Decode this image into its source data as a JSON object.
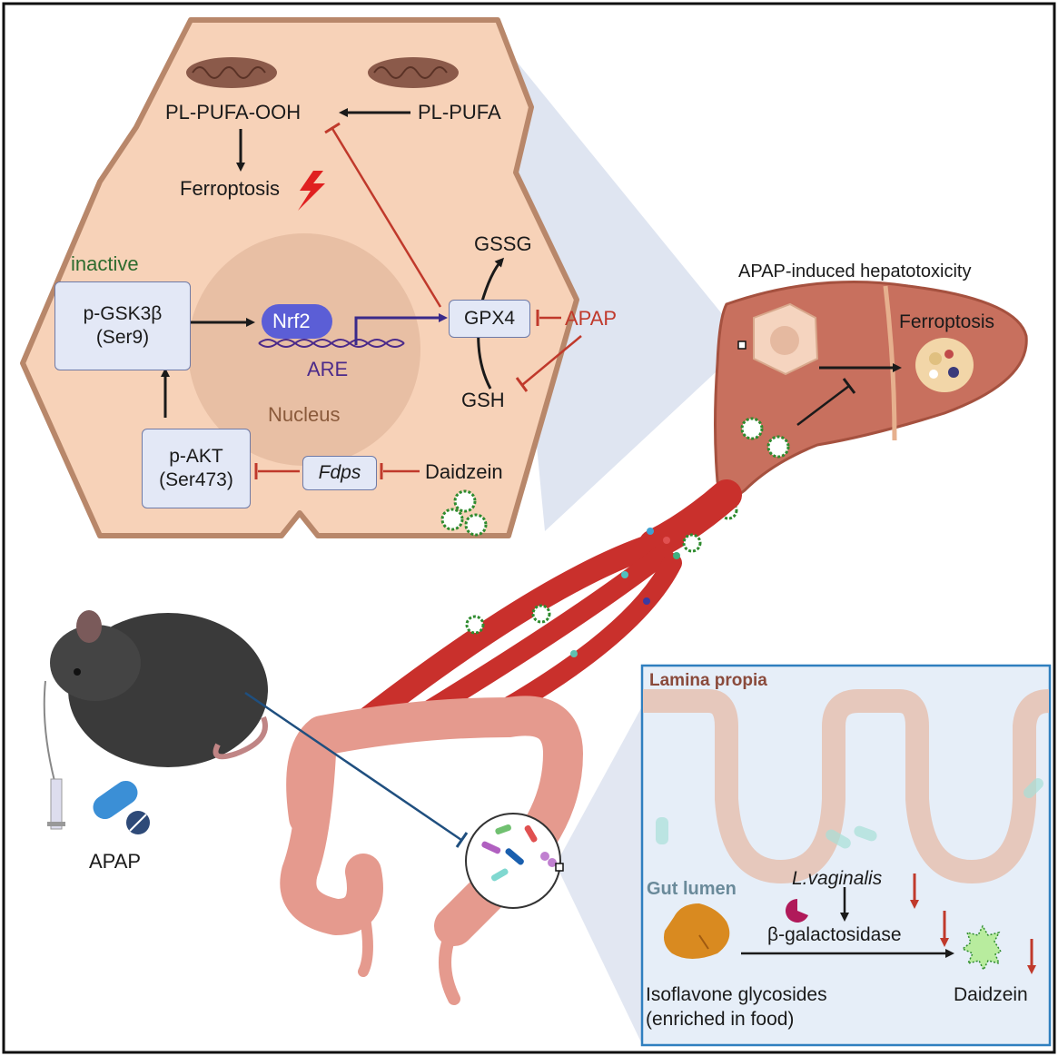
{
  "hepatocyte": {
    "pl_pufa_ooh": "PL-PUFA-OOH",
    "pl_pufa": "PL-PUFA",
    "ferroptosis": "Ferroptosis",
    "inactive": "inactive",
    "p_gsk3b": "p-GSK3β",
    "ser9": "(Ser9)",
    "nrf2": "Nrf2",
    "are": "ARE",
    "nucleus": "Nucleus",
    "gssg": "GSSG",
    "gpx4": "GPX4",
    "apap": "APAP",
    "gsh": "GSH",
    "p_akt": "p-AKT",
    "ser473": "(Ser473)",
    "fdps": "Fdps",
    "daidzein": "Daidzein"
  },
  "liver": {
    "title": "APAP-induced hepatotoxicity",
    "ferroptosis": "Ferroptosis"
  },
  "mouse": {
    "apap": "APAP"
  },
  "gut_panel": {
    "lamina_propia": "Lamina propia",
    "gut_lumen": "Gut lumen",
    "l_vaginalis": "L.vaginalis",
    "beta_gal": "β-galactosidase",
    "isoflavone": "Isoflavone glycosides",
    "enriched": "(enriched in food)",
    "daidzein": "Daidzein"
  },
  "colors": {
    "cell_fill": "#f7d2b8",
    "cell_stroke": "#b8876a",
    "nucleus_fill": "#e8bfa4",
    "vessel": "#c9302c",
    "liver": "#c8705e",
    "colon": "#e59a8e",
    "inhibit": "#c0392b",
    "activate": "#1a1a1a",
    "panel_bg": "#e6eef8",
    "panel_border": "#2f7fbf"
  }
}
